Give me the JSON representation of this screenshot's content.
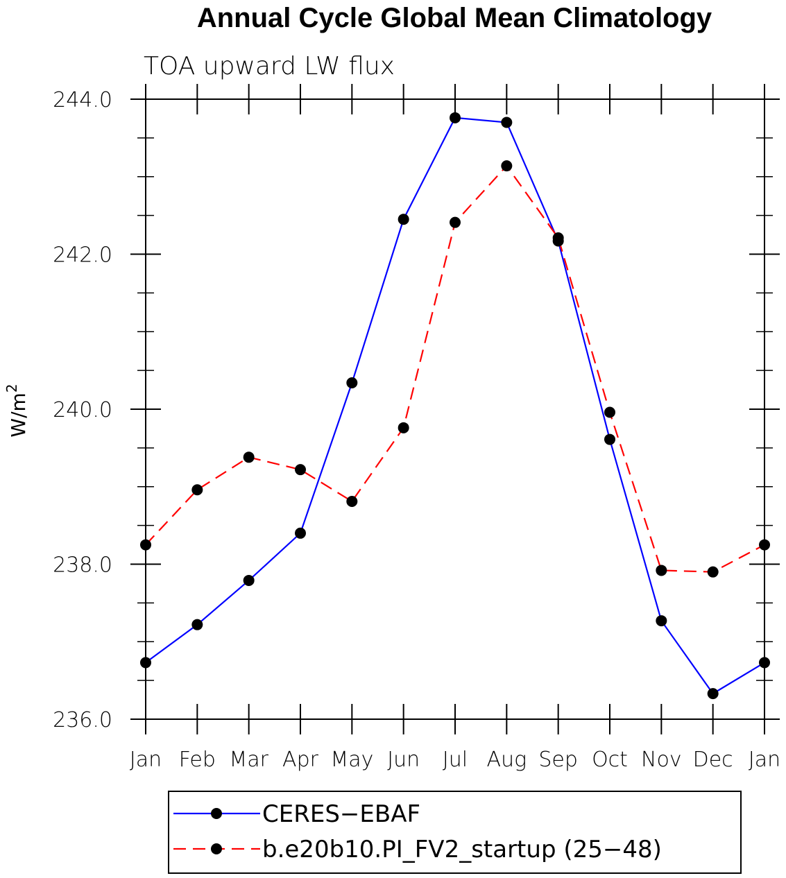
{
  "chart_data": {
    "type": "line",
    "title": "Annual Cycle Global Mean Climatology",
    "subtitle": "TOA upward LW flux",
    "ylabel": "W/m",
    "ylabel_superscript": "2",
    "xlabel": "",
    "categories": [
      "Jan",
      "Feb",
      "Mar",
      "Apr",
      "May",
      "Jun",
      "Jul",
      "Aug",
      "Sep",
      "Oct",
      "Nov",
      "Dec",
      "Jan"
    ],
    "ylim": [
      236.0,
      244.0
    ],
    "yticks": [
      "236.0",
      "238.0",
      "240.0",
      "242.0",
      "244.0"
    ],
    "grid": false,
    "legend_position": "bottom",
    "series": [
      {
        "name": "CERES−EBAF",
        "color": "#0000ff",
        "line_style": "solid",
        "marker": "filled-circle",
        "values": [
          236.73,
          237.22,
          237.79,
          238.4,
          240.34,
          242.45,
          243.76,
          243.7,
          242.17,
          239.61,
          237.27,
          236.33,
          236.73
        ]
      },
      {
        "name": "b.e20b10.PI_FV2_startup (25−48)",
        "color": "#ff0000",
        "line_style": "dashed",
        "marker": "filled-circle",
        "values": [
          238.25,
          238.96,
          239.38,
          239.22,
          238.81,
          239.76,
          242.41,
          243.14,
          242.21,
          239.96,
          237.92,
          237.9,
          238.25
        ]
      }
    ]
  }
}
